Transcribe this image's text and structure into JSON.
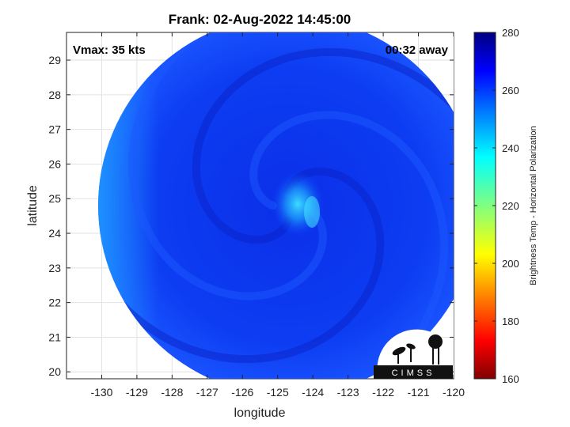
{
  "chart_data": {
    "type": "heatmap",
    "title": "Frank: 02-Aug-2022 14:45:00",
    "xlabel": "longitude",
    "ylabel": "latitude",
    "xlim": [
      -131,
      -120
    ],
    "ylim": [
      19.8,
      29.8
    ],
    "xticks": [
      -130,
      -129,
      -128,
      -127,
      -126,
      -125,
      -124,
      -123,
      -122,
      -121,
      -120
    ],
    "yticks": [
      20,
      21,
      22,
      23,
      24,
      25,
      26,
      27,
      28,
      29
    ],
    "grid": true,
    "annotations": {
      "left": "Vmax: 35 kts",
      "right": "00:32 away"
    },
    "storm_center": {
      "lon": -124.7,
      "lat": 24.8
    },
    "swath_radius_deg": 5.4,
    "colorbar": {
      "label": "Brightness Temp - Horizontal Polarization",
      "range": [
        160,
        280
      ],
      "ticks": [
        160,
        180,
        200,
        220,
        240,
        260,
        280
      ],
      "colormap": "jet"
    },
    "field_summary": {
      "typical_value": 262,
      "min_value": 238,
      "max_value": 268
    }
  },
  "logo": {
    "text": "CIMSS"
  }
}
